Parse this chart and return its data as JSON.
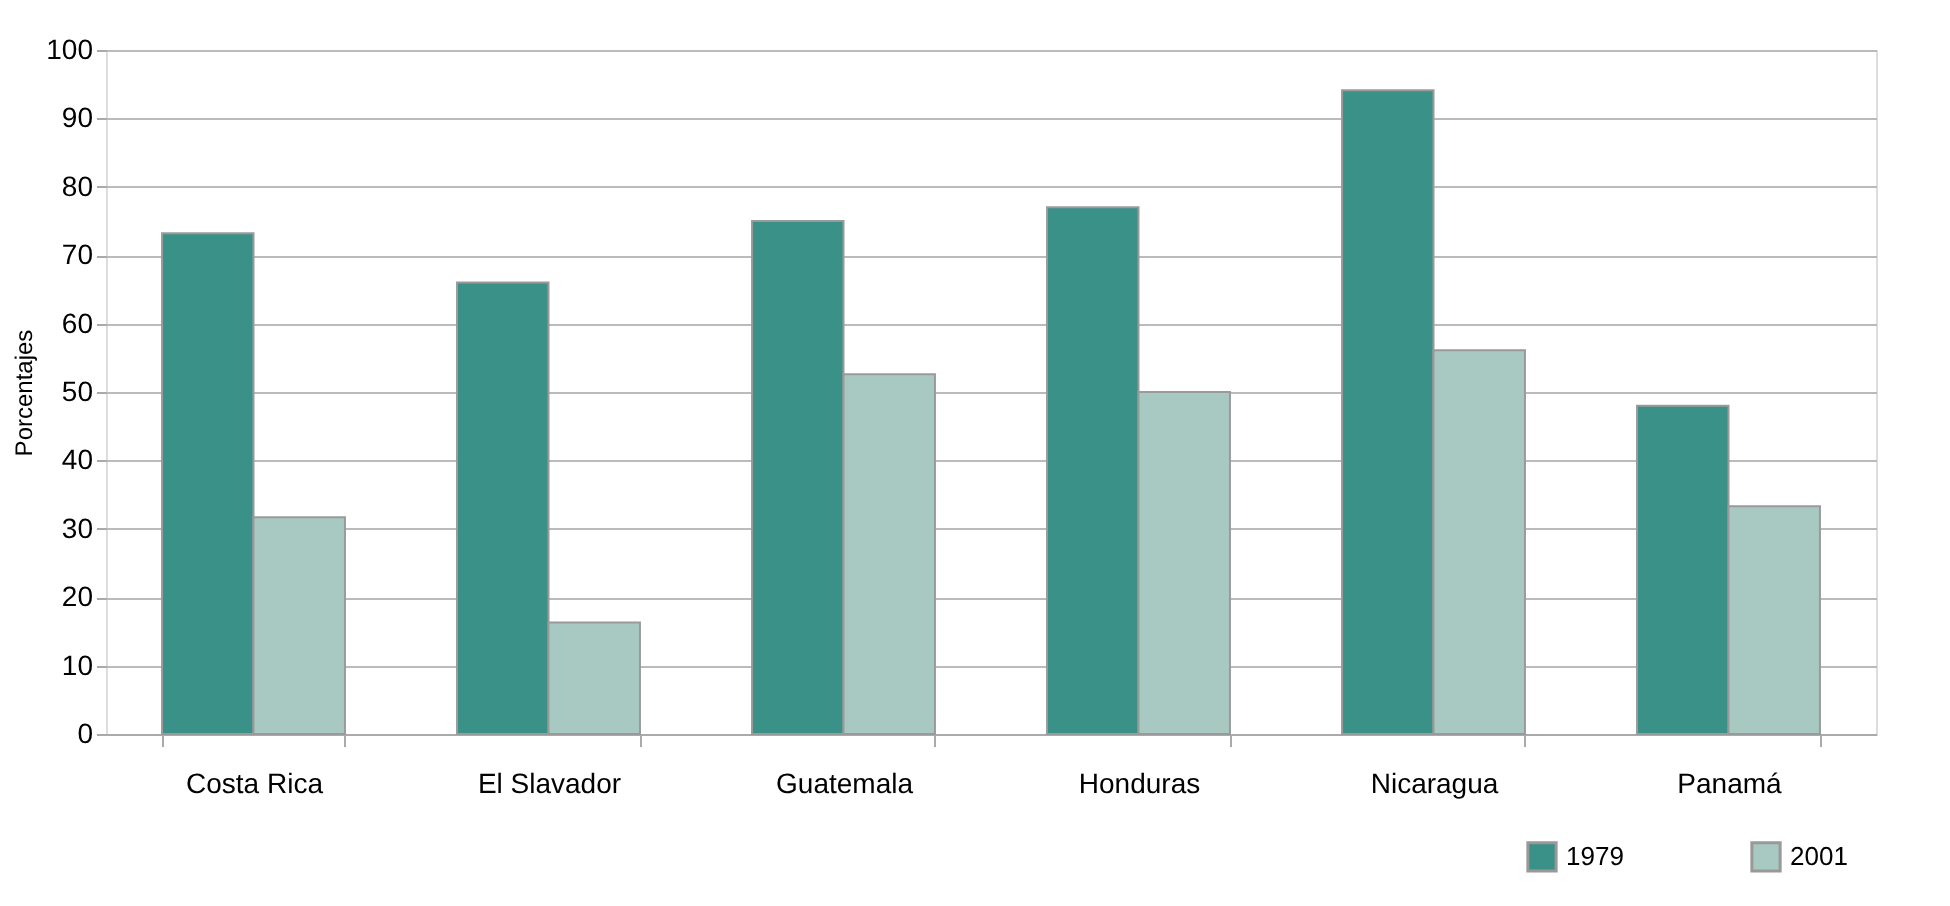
{
  "chart_data": {
    "type": "bar",
    "ylabel": "Porcentajes",
    "categories": [
      "Costa Rica",
      "El Slavador",
      "Guatemala",
      "Honduras",
      "Nicaragua",
      "Panamá"
    ],
    "series": [
      {
        "name": "1979",
        "color": "#3a9188",
        "values": [
          73.2,
          66,
          75,
          77,
          94.1,
          48
        ]
      },
      {
        "name": "2001",
        "color": "#a8c9c2",
        "values": [
          31.7,
          16.3,
          52.6,
          50,
          56.1,
          33.3
        ]
      }
    ],
    "ylim": [
      0,
      100
    ],
    "yticks": [
      0,
      10,
      20,
      30,
      40,
      50,
      60,
      70,
      80,
      90,
      100
    ],
    "grid": "y",
    "legend": "bottom right"
  }
}
